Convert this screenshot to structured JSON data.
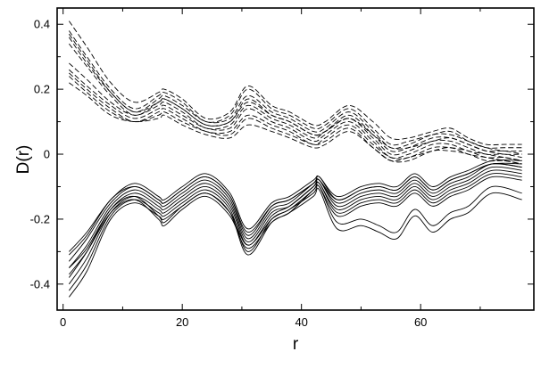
{
  "chart_data": {
    "type": "line",
    "title": "",
    "xlabel": "r",
    "ylabel": "D(r)",
    "xlim": [
      -1,
      79
    ],
    "ylim": [
      -0.48,
      0.45
    ],
    "xticks": [
      0,
      20,
      40,
      60
    ],
    "yticks": [
      -0.4,
      -0.2,
      0,
      0.2,
      0.4
    ],
    "ytick_labels": [
      "-0.4",
      "-0.2",
      "0",
      "0.2",
      "0.4"
    ],
    "grid": false,
    "legend": "none",
    "colors": {
      "line": "#000000",
      "axis": "#000000",
      "background": "#ffffff"
    },
    "groups": [
      {
        "style": "dashed",
        "x": [
          1,
          4,
          8,
          12,
          16,
          17,
          20,
          24,
          28,
          31,
          35,
          38,
          42,
          44,
          48,
          52,
          55,
          58,
          62,
          65,
          68,
          71,
          74,
          77
        ],
        "series": [
          {
            "values": [
              0.41,
              0.33,
              0.22,
              0.16,
              0.19,
              0.2,
              0.17,
              0.11,
              0.13,
              0.21,
              0.15,
              0.13,
              0.09,
              0.1,
              0.15,
              0.1,
              0.05,
              0.05,
              0.07,
              0.08,
              0.05,
              0.03,
              0.03,
              0.03
            ]
          },
          {
            "values": [
              0.38,
              0.3,
              0.2,
              0.14,
              0.18,
              0.19,
              0.16,
              0.1,
              0.12,
              0.2,
              0.14,
              0.12,
              0.08,
              0.09,
              0.14,
              0.08,
              0.03,
              0.04,
              0.06,
              0.07,
              0.04,
              0.02,
              0.02,
              0.02
            ]
          },
          {
            "values": [
              0.36,
              0.28,
              0.19,
              0.13,
              0.17,
              0.18,
              0.15,
              0.1,
              0.11,
              0.18,
              0.13,
              0.11,
              0.07,
              0.08,
              0.13,
              0.07,
              0.02,
              0.03,
              0.06,
              0.06,
              0.04,
              0.02,
              0.01,
              0.01
            ]
          },
          {
            "values": [
              0.34,
              0.27,
              0.18,
              0.12,
              0.16,
              0.17,
              0.14,
              0.09,
              0.1,
              0.17,
              0.12,
              0.1,
              0.06,
              0.07,
              0.12,
              0.06,
              0.01,
              0.02,
              0.05,
              0.05,
              0.03,
              0.01,
              0.01,
              0.0
            ]
          },
          {
            "values": [
              0.28,
              0.23,
              0.16,
              0.12,
              0.15,
              0.16,
              0.13,
              0.08,
              0.09,
              0.15,
              0.11,
              0.09,
              0.05,
              0.07,
              0.11,
              0.05,
              0.0,
              0.01,
              0.04,
              0.04,
              0.02,
              0.0,
              0.0,
              -0.01
            ]
          },
          {
            "values": [
              0.26,
              0.21,
              0.15,
              0.11,
              0.14,
              0.15,
              0.12,
              0.08,
              0.08,
              0.14,
              0.1,
              0.08,
              0.04,
              0.06,
              0.1,
              0.04,
              -0.01,
              0.0,
              0.03,
              0.03,
              0.01,
              0.0,
              -0.01,
              -0.02
            ]
          },
          {
            "values": [
              0.25,
              0.2,
              0.14,
              0.1,
              0.13,
              0.14,
              0.11,
              0.07,
              0.07,
              0.12,
              0.09,
              0.07,
              0.03,
              0.05,
              0.09,
              0.03,
              -0.01,
              -0.01,
              0.02,
              0.02,
              0.01,
              -0.01,
              -0.01,
              -0.02
            ]
          },
          {
            "values": [
              0.24,
              0.19,
              0.13,
              0.1,
              0.12,
              0.13,
              0.1,
              0.07,
              0.06,
              0.11,
              0.08,
              0.06,
              0.03,
              0.04,
              0.08,
              0.02,
              -0.02,
              -0.01,
              0.01,
              0.02,
              0.0,
              -0.01,
              -0.02,
              -0.03
            ]
          },
          {
            "values": [
              0.22,
              0.18,
              0.12,
              0.1,
              0.11,
              0.12,
              0.09,
              0.06,
              0.05,
              0.09,
              0.07,
              0.05,
              0.02,
              0.03,
              0.07,
              0.02,
              -0.02,
              -0.02,
              0.01,
              0.01,
              0.0,
              -0.02,
              -0.02,
              -0.03
            ]
          },
          {
            "values": [
              0.37,
              0.29,
              0.19,
              0.13,
              0.16,
              0.17,
              0.14,
              0.09,
              0.1,
              0.16,
              0.12,
              0.1,
              0.06,
              0.07,
              0.11,
              0.06,
              0.02,
              0.02,
              0.04,
              0.05,
              0.03,
              0.01,
              0.0,
              0.0
            ]
          }
        ]
      },
      {
        "style": "solid",
        "x": [
          1,
          4,
          8,
          12,
          16,
          17,
          20,
          24,
          28,
          31,
          35,
          38,
          42,
          43,
          46,
          50,
          53,
          56,
          59,
          62,
          65,
          68,
          72,
          77
        ],
        "series": [
          {
            "values": [
              -0.3,
              -0.24,
              -0.14,
              -0.09,
              -0.13,
              -0.14,
              -0.1,
              -0.06,
              -0.12,
              -0.23,
              -0.15,
              -0.13,
              -0.08,
              -0.07,
              -0.13,
              -0.1,
              -0.09,
              -0.1,
              -0.06,
              -0.1,
              -0.07,
              -0.05,
              -0.02,
              -0.02
            ]
          },
          {
            "values": [
              -0.33,
              -0.26,
              -0.15,
              -0.1,
              -0.14,
              -0.15,
              -0.11,
              -0.07,
              -0.13,
              -0.25,
              -0.16,
              -0.14,
              -0.09,
              -0.07,
              -0.14,
              -0.11,
              -0.1,
              -0.11,
              -0.07,
              -0.11,
              -0.08,
              -0.06,
              -0.03,
              -0.03
            ]
          },
          {
            "values": [
              -0.35,
              -0.28,
              -0.16,
              -0.11,
              -0.15,
              -0.16,
              -0.12,
              -0.08,
              -0.14,
              -0.26,
              -0.17,
              -0.15,
              -0.09,
              -0.08,
              -0.15,
              -0.12,
              -0.11,
              -0.12,
              -0.08,
              -0.12,
              -0.09,
              -0.07,
              -0.03,
              -0.04
            ]
          },
          {
            "values": [
              -0.38,
              -0.3,
              -0.17,
              -0.12,
              -0.16,
              -0.17,
              -0.13,
              -0.09,
              -0.15,
              -0.27,
              -0.18,
              -0.16,
              -0.1,
              -0.08,
              -0.16,
              -0.13,
              -0.12,
              -0.13,
              -0.09,
              -0.13,
              -0.1,
              -0.08,
              -0.04,
              -0.05
            ]
          },
          {
            "values": [
              -0.4,
              -0.32,
              -0.18,
              -0.13,
              -0.17,
              -0.18,
              -0.14,
              -0.1,
              -0.16,
              -0.28,
              -0.19,
              -0.16,
              -0.1,
              -0.09,
              -0.17,
              -0.14,
              -0.13,
              -0.14,
              -0.1,
              -0.14,
              -0.11,
              -0.09,
              -0.05,
              -0.06
            ]
          },
          {
            "values": [
              -0.42,
              -0.34,
              -0.19,
              -0.14,
              -0.18,
              -0.19,
              -0.15,
              -0.11,
              -0.17,
              -0.3,
              -0.2,
              -0.17,
              -0.11,
              -0.09,
              -0.18,
              -0.15,
              -0.14,
              -0.15,
              -0.11,
              -0.15,
              -0.12,
              -0.1,
              -0.06,
              -0.07
            ]
          },
          {
            "values": [
              -0.44,
              -0.36,
              -0.2,
              -0.15,
              -0.19,
              -0.2,
              -0.16,
              -0.12,
              -0.18,
              -0.31,
              -0.21,
              -0.18,
              -0.11,
              -0.1,
              -0.19,
              -0.16,
              -0.15,
              -0.16,
              -0.12,
              -0.16,
              -0.13,
              -0.11,
              -0.07,
              -0.08
            ]
          },
          {
            "values": [
              -0.35,
              -0.29,
              -0.17,
              -0.13,
              -0.19,
              -0.21,
              -0.16,
              -0.12,
              -0.18,
              -0.28,
              -0.2,
              -0.17,
              -0.12,
              -0.1,
              -0.21,
              -0.2,
              -0.22,
              -0.24,
              -0.17,
              -0.22,
              -0.18,
              -0.16,
              -0.1,
              -0.12
            ]
          },
          {
            "values": [
              -0.37,
              -0.3,
              -0.18,
              -0.14,
              -0.2,
              -0.22,
              -0.17,
              -0.13,
              -0.19,
              -0.29,
              -0.21,
              -0.18,
              -0.13,
              -0.11,
              -0.23,
              -0.22,
              -0.24,
              -0.26,
              -0.19,
              -0.24,
              -0.2,
              -0.18,
              -0.12,
              -0.14
            ]
          },
          {
            "values": [
              -0.31,
              -0.25,
              -0.14,
              -0.1,
              -0.14,
              -0.15,
              -0.11,
              -0.07,
              -0.13,
              -0.24,
              -0.16,
              -0.14,
              -0.09,
              -0.08,
              -0.14,
              -0.11,
              -0.1,
              -0.11,
              -0.07,
              -0.11,
              -0.08,
              -0.06,
              -0.03,
              -0.04
            ]
          }
        ]
      }
    ]
  }
}
